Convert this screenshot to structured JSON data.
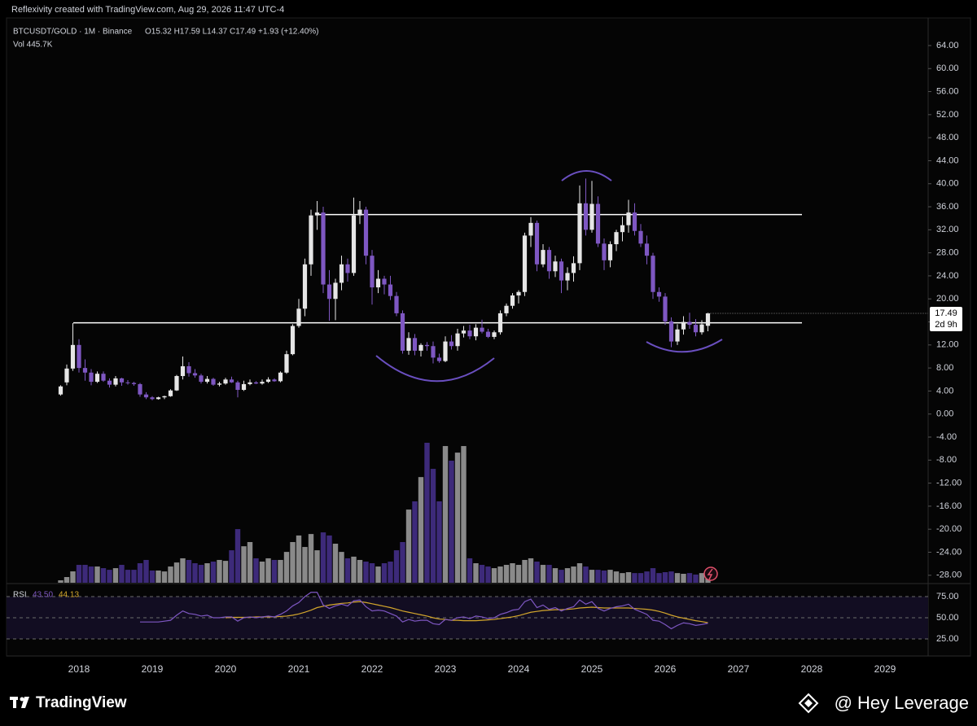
{
  "header": {
    "created": "Reflexivity created with TradingView.com, Aug 29, 2026 11:47 UTC-4",
    "symbol": "BTCUSDT/GOLD · 1M · Binance",
    "ohlc": "O15.32 H17.59 L14.37 C17.49 +1.93 (+12.40%)",
    "volume": "Vol 445.7K"
  },
  "chart_data": {
    "type": "candlestick",
    "categories": [
      null,
      null,
      null,
      "2018",
      null,
      null,
      null,
      null,
      null,
      null,
      null,
      null,
      null,
      null,
      null,
      "2019",
      null,
      null,
      null,
      null,
      null,
      null,
      null,
      null,
      null,
      null,
      null,
      "2020",
      null,
      null,
      null,
      null,
      null,
      null,
      null,
      null,
      null,
      null,
      null,
      "2021",
      null,
      null,
      null,
      null,
      null,
      null,
      null,
      null,
      null,
      null,
      null,
      "2022",
      null,
      null,
      null,
      null,
      null,
      null,
      null,
      null,
      null,
      null,
      null,
      "2023",
      null,
      null,
      null,
      null,
      null,
      null,
      null,
      null,
      null,
      null,
      null,
      "2024",
      null,
      null,
      null,
      null,
      null,
      null,
      null,
      null,
      null,
      null,
      null,
      "2025",
      null,
      null,
      null,
      null,
      null,
      null,
      null,
      null,
      null,
      null,
      null,
      "2026",
      null,
      null,
      null,
      null,
      null,
      null,
      null,
      null,
      null,
      null,
      null,
      "2027",
      null,
      null,
      null,
      null,
      null,
      null,
      null,
      null,
      null,
      null,
      null,
      "2028",
      null,
      null,
      null,
      null,
      null,
      null,
      null,
      null,
      null,
      null,
      null,
      "2029",
      null,
      null,
      null,
      null,
      null,
      null,
      null
    ],
    "open": [
      3.4,
      5.5,
      7.9,
      12,
      8,
      7.2,
      5.6,
      7,
      5.8,
      5.1,
      6.2,
      5.5,
      5.4,
      5.2,
      3.4,
      2.9,
      2.6,
      2.9,
      3.1,
      4.1,
      6.6,
      8.3,
      7.1,
      6.7,
      5.6,
      6.1,
      5.1,
      5.3,
      6.0,
      5.5,
      4.2,
      5.2,
      5.5,
      5.3,
      5.6,
      6.0,
      5.7,
      7.2,
      10.4,
      15.3,
      18.3,
      26,
      34.5,
      35,
      22.5,
      20,
      22.8,
      26,
      24.5,
      34.5,
      35.5,
      27.5,
      22,
      23.5,
      22.5,
      20.5,
      17.5,
      11,
      13.2,
      11,
      12,
      11.8,
      9.8,
      9.2,
      12.6,
      11.8,
      14,
      14.5,
      13.5,
      15,
      14.3,
      13.4,
      14.2,
      17.5,
      18.8,
      20.6,
      21.2,
      31,
      33.2,
      26,
      28.5,
      24.8,
      26.5,
      23.2,
      24.5,
      26.2,
      36.6,
      32,
      36.5,
      29.6,
      26.7,
      29.5,
      31.6,
      32.8,
      35,
      31.8,
      29.6,
      27.5,
      21.2,
      20.4,
      16.1,
      12.6,
      14.7,
      16,
      15.5,
      14.2,
      15.32,
      null,
      null,
      null,
      null,
      null,
      null,
      null,
      null,
      null,
      null,
      null,
      null,
      null,
      null,
      null,
      null,
      null,
      null,
      null,
      null,
      null,
      null,
      null,
      null,
      null,
      null,
      null,
      null,
      null,
      null,
      null,
      null,
      null,
      null,
      null,
      null
    ],
    "high": [
      5,
      8.6,
      15.8,
      13,
      9.5,
      7.8,
      7.4,
      7.4,
      6.2,
      6.6,
      6.3,
      5.9,
      5.6,
      5.4,
      3.8,
      3.1,
      3.0,
      3.2,
      4.3,
      6.8,
      10,
      9,
      7.8,
      7,
      6.6,
      6.3,
      5.6,
      6.3,
      6.5,
      5.8,
      5.8,
      6.0,
      5.7,
      6.0,
      6.4,
      6.2,
      7.4,
      11,
      15.6,
      20,
      27,
      35.5,
      37,
      36,
      25,
      23.5,
      27.5,
      27,
      37.6,
      37,
      36,
      28.5,
      25,
      24,
      24,
      21.2,
      18,
      14.2,
      13.9,
      12.3,
      12.5,
      12.6,
      10.5,
      13.5,
      13.7,
      14.8,
      15.3,
      15.5,
      15.6,
      16.4,
      14.8,
      14.5,
      18,
      19.2,
      21,
      21.5,
      31.5,
      34.2,
      33.6,
      29.5,
      29,
      27.5,
      27,
      25.5,
      27.4,
      39.7,
      40.9,
      40.5,
      37.8,
      30.5,
      30,
      32,
      34.3,
      37.2,
      36.6,
      33,
      31,
      28,
      22,
      21,
      16.8,
      15.6,
      17,
      17.6,
      16.5,
      16.3,
      17.59,
      null,
      null,
      null,
      null,
      null,
      null,
      null,
      null,
      null,
      null,
      null,
      null,
      null,
      null,
      null,
      null,
      null,
      null,
      null,
      null,
      null,
      null,
      null,
      null,
      null,
      null,
      null,
      null,
      null,
      null,
      null,
      null,
      null,
      null,
      null,
      null
    ],
    "low": [
      3.2,
      5.0,
      7.5,
      7.2,
      5.8,
      5.0,
      5.4,
      5.6,
      4.6,
      4.8,
      4.9,
      5.1,
      4.9,
      3.0,
      2.6,
      2.4,
      2.5,
      2.6,
      3.0,
      4.0,
      6.0,
      6.5,
      6.3,
      5.3,
      5.3,
      4.9,
      4.8,
      5.1,
      5.4,
      2.9,
      4.0,
      5.0,
      5.2,
      5.1,
      5.4,
      5.6,
      5.5,
      7.0,
      10.2,
      15,
      17,
      24,
      32,
      21,
      16.2,
      16.3,
      21.5,
      23,
      24,
      33,
      26,
      19,
      21,
      20.8,
      19.8,
      17,
      10.5,
      10.3,
      10.2,
      10,
      11,
      8.8,
      8.9,
      9,
      11.2,
      11,
      13.3,
      13,
      12.8,
      14,
      13.2,
      13,
      13.8,
      17,
      18.3,
      19.2,
      20.5,
      29,
      24.8,
      25.5,
      23.5,
      23.8,
      21,
      21.5,
      23,
      25,
      31,
      31.5,
      29,
      25,
      25.5,
      28.3,
      30,
      31.5,
      31,
      29,
      26,
      20,
      19.5,
      15.5,
      11.6,
      12,
      13.8,
      14.8,
      13.5,
      13.8,
      14.37,
      null,
      null,
      null,
      null,
      null,
      null,
      null,
      null,
      null,
      null,
      null,
      null,
      null,
      null,
      null,
      null,
      null,
      null,
      null,
      null,
      null,
      null,
      null,
      null,
      null,
      null,
      null,
      null,
      null,
      null,
      null,
      null,
      null,
      null,
      null,
      null
    ],
    "close": [
      4.8,
      7.9,
      12,
      8,
      7.2,
      5.6,
      7,
      5.8,
      5.1,
      6.2,
      5.5,
      5.4,
      5.2,
      3.4,
      2.9,
      2.6,
      2.9,
      3.1,
      4.1,
      6.6,
      8.3,
      7.1,
      6.7,
      5.6,
      6.1,
      5.1,
      5.3,
      6.0,
      5.5,
      4.2,
      5.2,
      5.5,
      5.3,
      5.6,
      6.0,
      5.7,
      7.2,
      10.4,
      15.3,
      18.3,
      26,
      34.5,
      35,
      22.5,
      20,
      22.8,
      26,
      24.5,
      34.5,
      35.5,
      27.5,
      22,
      23.5,
      22.5,
      20.5,
      17.5,
      11,
      13.2,
      11,
      12,
      11.8,
      9.8,
      9.2,
      12.6,
      11.8,
      14,
      14.5,
      13.5,
      15,
      14.3,
      13.4,
      14.2,
      17.5,
      18.8,
      20.6,
      21.2,
      31,
      33.2,
      26,
      28.5,
      24.8,
      26.5,
      23.2,
      24.5,
      26.2,
      36.6,
      32,
      36.5,
      29.6,
      26.7,
      29.5,
      31.6,
      32.8,
      35,
      31.8,
      29.6,
      27.5,
      21.2,
      20.4,
      16.1,
      12.6,
      14.7,
      16,
      15.5,
      14.2,
      15.56,
      17.49,
      null,
      null,
      null,
      null,
      null,
      null,
      null,
      null,
      null,
      null,
      null,
      null,
      null,
      null,
      null,
      null,
      null,
      null,
      null,
      null,
      null,
      null,
      null,
      null,
      null,
      null,
      null,
      null,
      null,
      null,
      null,
      null,
      null,
      null,
      null,
      null
    ],
    "up_color": "#e6e6e6",
    "down_color": "#7e57c2",
    "ylim": [
      -29.3,
      68.8
    ],
    "yticks": [
      {
        "value": -28,
        "label": "-28.00"
      },
      {
        "value": -24,
        "label": "-24.00"
      },
      {
        "value": -20,
        "label": "-20.00"
      },
      {
        "value": -16,
        "label": "-16.00"
      },
      {
        "value": -12,
        "label": "-12.00"
      },
      {
        "value": -8,
        "label": "-8.00"
      },
      {
        "value": -4,
        "label": "-4.00"
      },
      {
        "value": 0,
        "label": "0.00"
      },
      {
        "value": 4,
        "label": "4.00"
      },
      {
        "value": 8,
        "label": "8.00"
      },
      {
        "value": 12,
        "label": "12.00"
      },
      {
        "value": 16,
        "label": "16.00"
      },
      {
        "value": 20,
        "label": "20.00"
      },
      {
        "value": 24,
        "label": "24.00"
      },
      {
        "value": 28,
        "label": "28.00"
      },
      {
        "value": 32,
        "label": "32.00"
      },
      {
        "value": 36,
        "label": "36.00"
      },
      {
        "value": 40,
        "label": "40.00"
      },
      {
        "value": 44,
        "label": "44.00"
      },
      {
        "value": 48,
        "label": "48.00"
      },
      {
        "value": 52,
        "label": "52.00"
      },
      {
        "value": 56,
        "label": "56.00"
      },
      {
        "value": 60,
        "label": "60.00"
      },
      {
        "value": 64,
        "label": "64.00"
      }
    ],
    "last_label": "17.49",
    "countdown": "2d 9h",
    "hlines": [
      34.65,
      15.84
    ],
    "hline_color": "#ffffff",
    "volume": {
      "values": [
        134,
        312,
        624,
        980,
        980,
        890,
        890,
        800,
        710,
        800,
        980,
        710,
        710,
        1070,
        1250,
        670,
        670,
        620,
        890,
        1110,
        1340,
        1250,
        1070,
        980,
        1070,
        1160,
        1250,
        1200,
        1780,
        2940,
        2000,
        2230,
        1340,
        1160,
        1340,
        1250,
        1250,
        1690,
        2230,
        2590,
        1960,
        2670,
        1780,
        2760,
        2590,
        2140,
        1690,
        1340,
        1430,
        1250,
        1160,
        1070,
        890,
        1070,
        1160,
        1780,
        2230,
        4010,
        4460,
        5790,
        7670,
        6240,
        4460,
        7490,
        6690,
        7130,
        7490,
        1340,
        1070,
        980,
        890,
        800,
        890,
        980,
        1070,
        980,
        1250,
        1340,
        1160,
        980,
        980,
        800,
        710,
        800,
        890,
        1070,
        890,
        710,
        710,
        670,
        710,
        620,
        530,
        580,
        530,
        530,
        620,
        800,
        530,
        580,
        620,
        530,
        490,
        530,
        450,
        530,
        445.7,
        null,
        null,
        null,
        null,
        null,
        null,
        null,
        null,
        null,
        null,
        null,
        null,
        null,
        null,
        null,
        null,
        null,
        null,
        null,
        null,
        null,
        null,
        null,
        null,
        null,
        null,
        null,
        null,
        null,
        null,
        null,
        null,
        null,
        null,
        null,
        null
      ],
      "up_color": "#8a8a8a",
      "down_color": "#3d2a7a"
    },
    "rsi": {
      "name": "RSI",
      "value_label": "43.50",
      "ma_label": "44.13",
      "color": "#7e57c2",
      "ma_color": "#d4a72c",
      "values": [
        null,
        null,
        null,
        null,
        null,
        null,
        null,
        null,
        null,
        null,
        null,
        null,
        null,
        45,
        45,
        45,
        45,
        46,
        47,
        53,
        58,
        55,
        54,
        52,
        53,
        50,
        50,
        51,
        51,
        46,
        50,
        51,
        50,
        51,
        52,
        51,
        54,
        58,
        64,
        68,
        75,
        80,
        80,
        65,
        61,
        64,
        66,
        64,
        70,
        71,
        63,
        58,
        59,
        58,
        55,
        52,
        45,
        48,
        46,
        47,
        47,
        43,
        42,
        48,
        47,
        50,
        51,
        49,
        52,
        51,
        49,
        50,
        54,
        56,
        59,
        60,
        69,
        72,
        62,
        65,
        60,
        62,
        58,
        61,
        63,
        71,
        66,
        69,
        61,
        58,
        61,
        63,
        64,
        66,
        60,
        57,
        54,
        47,
        46,
        42,
        37,
        41,
        44,
        43,
        41,
        42,
        43.5,
        null,
        null,
        null,
        null,
        null,
        null,
        null,
        null,
        null,
        null,
        null,
        null,
        null,
        null,
        null,
        null,
        null,
        null,
        null,
        null,
        null,
        null,
        null,
        null,
        null,
        null,
        null,
        null,
        null,
        null,
        null,
        null,
        null,
        null,
        null,
        null
      ],
      "ma_values": [
        null,
        null,
        null,
        null,
        null,
        null,
        null,
        null,
        null,
        null,
        null,
        null,
        null,
        null,
        null,
        null,
        null,
        null,
        null,
        null,
        null,
        null,
        null,
        null,
        null,
        null,
        null,
        50,
        50.5,
        50.5,
        50.5,
        50.5,
        51,
        51,
        51,
        51,
        51.5,
        52,
        53,
        54.5,
        56.5,
        59,
        62,
        63.5,
        65,
        66,
        67,
        67.5,
        68.5,
        69,
        68,
        66.5,
        65,
        63.5,
        62,
        60,
        58,
        56.5,
        55,
        53.5,
        52,
        50,
        48.5,
        48,
        47,
        47,
        46.5,
        46.5,
        46.5,
        47,
        47.5,
        48,
        49,
        50,
        51,
        52.5,
        54.5,
        56.5,
        57.5,
        58.5,
        59,
        59.5,
        59.5,
        60,
        60.5,
        61.5,
        62,
        62.5,
        62,
        61.5,
        61.5,
        61.5,
        61.5,
        61.5,
        61,
        60.5,
        60,
        59,
        57.5,
        55.5,
        53,
        51,
        49.5,
        48,
        46.5,
        45.5,
        44.13,
        null,
        null,
        null,
        null,
        null,
        null,
        null,
        null,
        null,
        null,
        null,
        null,
        null,
        null,
        null,
        null,
        null,
        null,
        null,
        null,
        null,
        null,
        null,
        null,
        null,
        null,
        null,
        null,
        null,
        null,
        null,
        null,
        null,
        null,
        null,
        null
      ],
      "ylim": [
        10.6,
        89.4
      ],
      "yticks": [
        {
          "value": 25,
          "label": "25.00"
        },
        {
          "value": 50,
          "label": "50.00"
        },
        {
          "value": 75,
          "label": "75.00"
        }
      ]
    }
  },
  "footer": {
    "brand": "TradingView",
    "credit": "@ Hey Leverage"
  }
}
